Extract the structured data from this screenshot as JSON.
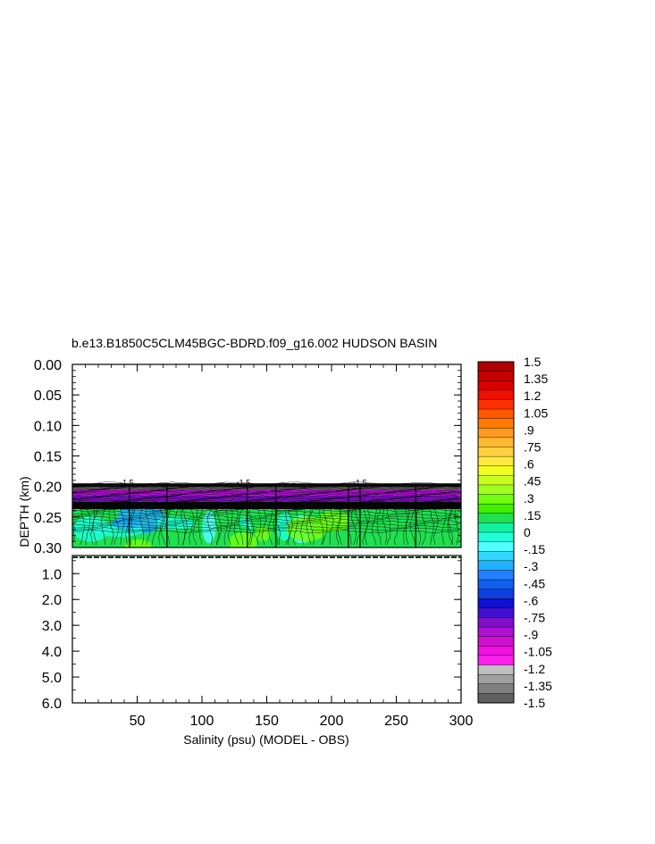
{
  "chart_data": {
    "type": "heatmap",
    "title": "b.e13.B1850C5CLM45BGC-BDRD.f09_g16.002 HUDSON BASIN",
    "xlabel": "Salinity (psu) (MODEL - OBS)",
    "ylabel": "DEPTH (km)",
    "xlim": [
      0,
      300
    ],
    "x_ticks": [
      "50",
      "100",
      "150",
      "200",
      "250",
      "300"
    ],
    "upper_panel": {
      "ylim": [
        0.0,
        0.3
      ],
      "y_ticks": [
        "0.00",
        "0.05",
        "0.10",
        "0.15",
        "0.20",
        "0.25",
        "0.30"
      ],
      "data_top_depth": 0.195,
      "bands": [
        {
          "from": 0.195,
          "to": 0.205,
          "value": -1.5
        },
        {
          "from": 0.205,
          "to": 0.215,
          "value": -0.9
        },
        {
          "from": 0.215,
          "to": 0.225,
          "value": -0.75
        },
        {
          "from": 0.225,
          "to": 0.237,
          "value": -1.5
        },
        {
          "from": 0.237,
          "to": 0.3,
          "value": 0.15
        }
      ],
      "contour_labels": [
        "-1.5",
        "-1.5",
        "-1.5"
      ]
    },
    "lower_panel": {
      "ylim": [
        0.3,
        6.0
      ],
      "y_ticks": [
        "1.0",
        "2.0",
        "3.0",
        "4.0",
        "5.0",
        "6.0"
      ]
    },
    "colorbar": {
      "labels": [
        "1.5",
        "1.35",
        "1.2",
        "1.05",
        ".9",
        ".75",
        ".6",
        ".45",
        ".3",
        ".15",
        "0",
        "-.15",
        "-.3",
        "-.45",
        "-.6",
        "-.75",
        "-.9",
        "-1.05",
        "-1.2",
        "-1.35",
        "-1.5"
      ],
      "colors": [
        "#b00000",
        "#c40000",
        "#d80000",
        "#ec1000",
        "#ff3000",
        "#ff5a00",
        "#ff7a00",
        "#ff9a20",
        "#ffb830",
        "#ffd040",
        "#ffe840",
        "#f0ff20",
        "#c8ff20",
        "#a0ff20",
        "#70ff10",
        "#40f000",
        "#20e050",
        "#10f0a0",
        "#20ffd8",
        "#50ffff",
        "#30d8ff",
        "#20b0ff",
        "#2080ff",
        "#1060f0",
        "#1040e0",
        "#1010d0",
        "#4010d0",
        "#8010c8",
        "#b010d0",
        "#d010d0",
        "#f010e0",
        "#ff20f0",
        "#c0c0c0",
        "#a0a0a0",
        "#808080",
        "#606060"
      ]
    }
  }
}
